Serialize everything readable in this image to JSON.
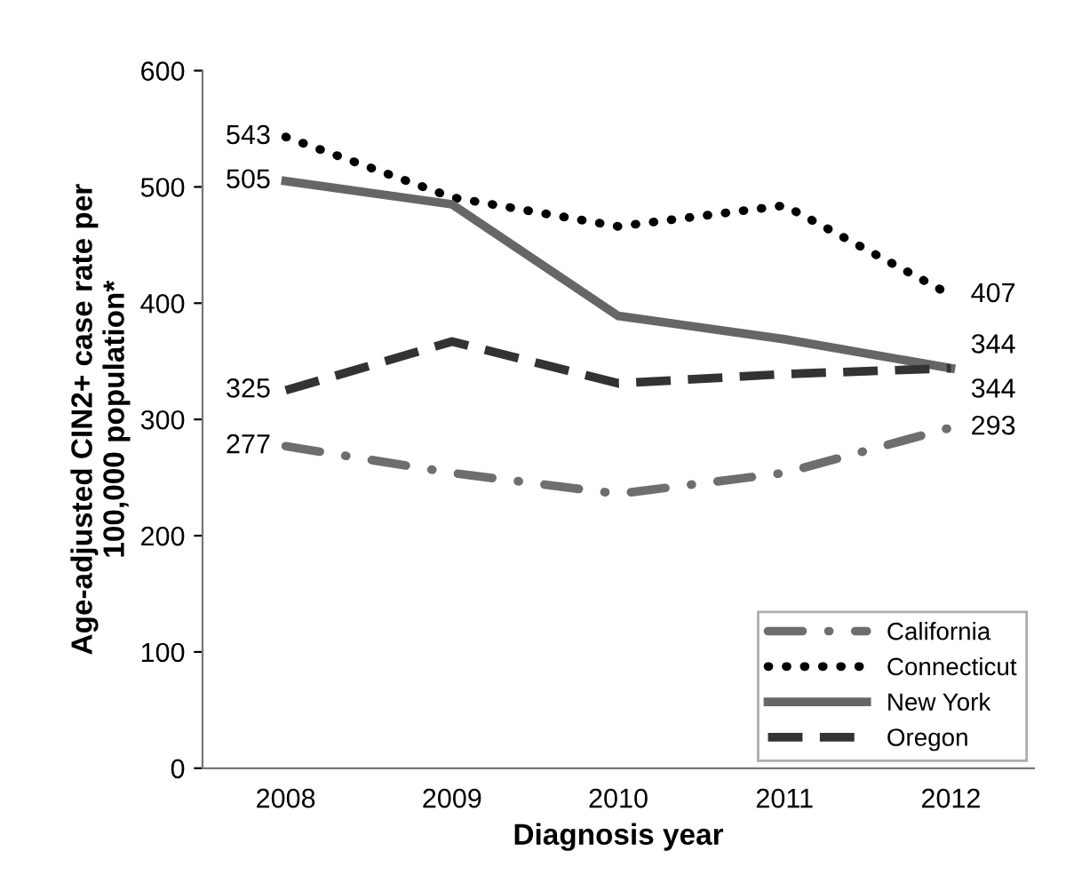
{
  "chart_data": {
    "type": "line",
    "xlabel": "Diagnosis year",
    "ylabel": "Age-adjusted CIN2+ case rate per\n100,000 population*",
    "categories": [
      "2008",
      "2009",
      "2010",
      "2011",
      "2012"
    ],
    "ylim": [
      0,
      600
    ],
    "yticks": [
      0,
      100,
      200,
      300,
      400,
      500,
      600
    ],
    "grid": false,
    "legend": "bottom right",
    "marker": "none",
    "series": [
      {
        "name": "California",
        "color": "#6e6e6e",
        "line_style": "dashdot",
        "values": [
          277,
          254,
          236,
          254,
          293
        ],
        "value_labels": [
          "277",
          null,
          null,
          null,
          "293"
        ]
      },
      {
        "name": "Connecticut",
        "color": "#000000",
        "line_style": "dotted",
        "values": [
          543,
          491,
          466,
          484,
          407
        ],
        "value_labels": [
          "543",
          null,
          null,
          null,
          "407"
        ]
      },
      {
        "name": "New York",
        "color": "#666666",
        "line_style": "solid",
        "values": [
          505,
          485,
          389,
          369,
          344
        ],
        "value_labels": [
          "505",
          null,
          null,
          null,
          "344"
        ]
      },
      {
        "name": "Oregon",
        "color": "#333333",
        "line_style": "dashed",
        "values": [
          325,
          367,
          331,
          339,
          344
        ],
        "value_labels": [
          "325",
          null,
          null,
          null,
          "344"
        ]
      }
    ]
  }
}
